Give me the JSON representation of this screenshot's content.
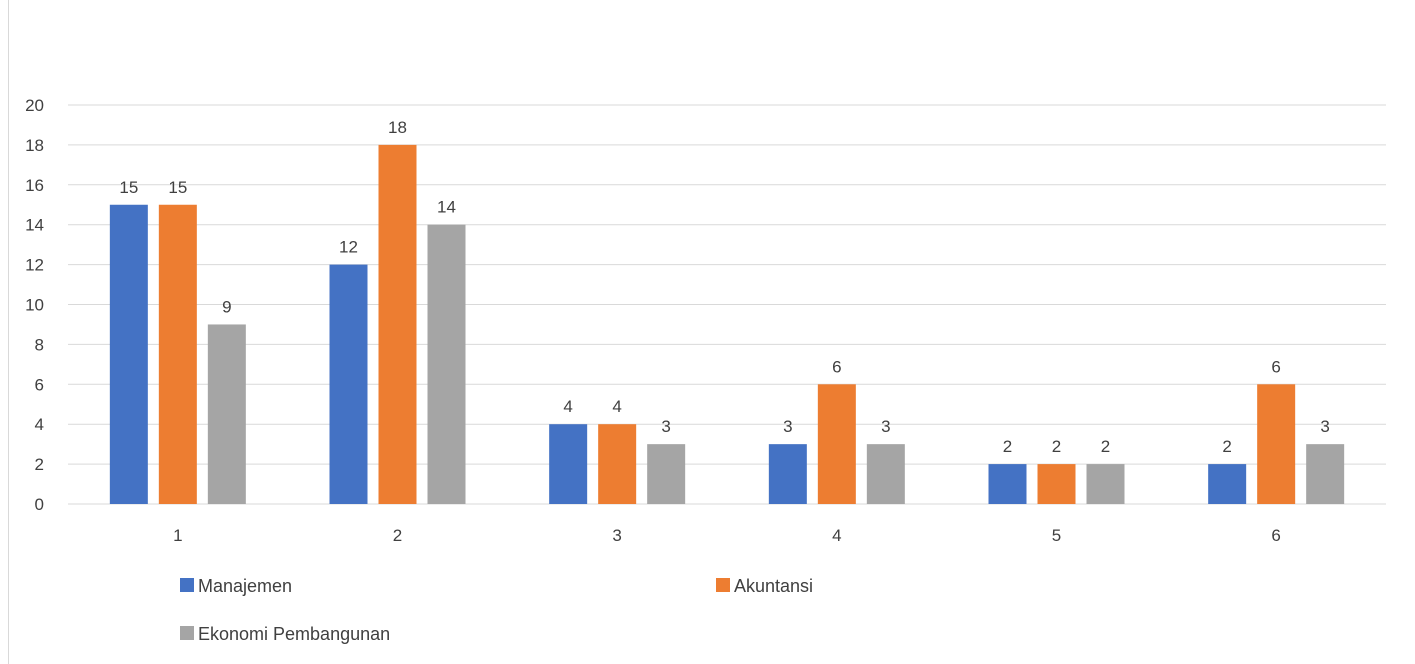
{
  "chart_data": {
    "type": "bar",
    "title": "",
    "xlabel": "",
    "ylabel": "",
    "categories": [
      "1",
      "2",
      "3",
      "4",
      "5",
      "6"
    ],
    "series": [
      {
        "name": "Manajemen",
        "color": "#4472C4",
        "values": [
          15,
          12,
          4,
          3,
          2,
          2
        ]
      },
      {
        "name": "Akuntansi",
        "color": "#ED7D31",
        "values": [
          15,
          18,
          4,
          6,
          2,
          6
        ]
      },
      {
        "name": "Ekonomi Pembangunan",
        "color": "#A5A5A5",
        "values": [
          9,
          14,
          3,
          3,
          2,
          3
        ]
      }
    ],
    "ylim": [
      0,
      20
    ],
    "yticks": [
      0,
      2,
      4,
      6,
      8,
      10,
      12,
      14,
      16,
      18,
      20
    ],
    "grid": true,
    "data_labels": true,
    "legend_position": "bottom"
  }
}
